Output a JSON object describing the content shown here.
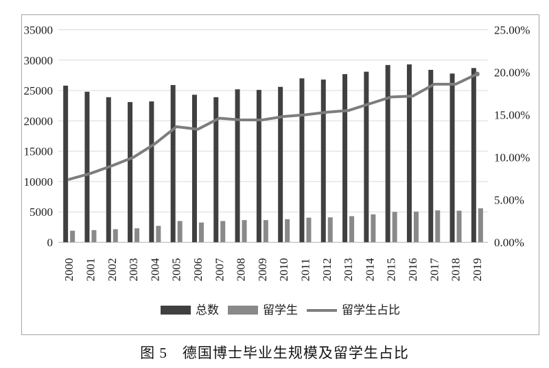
{
  "figure": {
    "caption": "图 5　德国博士毕业生规模及留学生占比"
  },
  "chart_data": {
    "type": "combo-bar-line",
    "title": "",
    "categories": [
      "2000",
      "2001",
      "2002",
      "2003",
      "2004",
      "2005",
      "2006",
      "2007",
      "2008",
      "2009",
      "2010",
      "2011",
      "2012",
      "2013",
      "2014",
      "2015",
      "2016",
      "2017",
      "2018",
      "2019"
    ],
    "series": [
      {
        "name": "总数",
        "type": "bar",
        "axis": "left",
        "color": "#404040",
        "values": [
          25800,
          24800,
          23900,
          23100,
          23200,
          25900,
          24300,
          23900,
          25200,
          25100,
          25600,
          27000,
          26800,
          27700,
          28100,
          29200,
          29300,
          28400,
          27800,
          28700
        ]
      },
      {
        "name": "留学生",
        "type": "bar",
        "axis": "left",
        "color": "#898989",
        "values": [
          1900,
          2000,
          2150,
          2300,
          2700,
          3500,
          3250,
          3500,
          3650,
          3650,
          3800,
          4050,
          4100,
          4300,
          4600,
          5000,
          5050,
          5250,
          5200,
          5600
        ]
      },
      {
        "name": "留学生占比",
        "type": "line",
        "axis": "right",
        "color": "#7d7d7d",
        "unit": "%",
        "values": [
          7.4,
          8.1,
          9.0,
          10.0,
          11.6,
          13.6,
          13.3,
          14.6,
          14.4,
          14.4,
          14.8,
          15.0,
          15.3,
          15.5,
          16.3,
          17.1,
          17.2,
          18.6,
          18.6,
          19.8
        ]
      }
    ],
    "left_axis": {
      "min": 0,
      "max": 35000,
      "step": 5000,
      "tick_labels": [
        "35000",
        "30000",
        "25000",
        "20000",
        "15000",
        "10000",
        "5000",
        "0"
      ]
    },
    "right_axis": {
      "min": 0,
      "max": 25,
      "step": 5,
      "tick_labels": [
        "25.00%",
        "20.00%",
        "15.00%",
        "10.00%",
        "5.00%",
        "0.00%"
      ]
    },
    "grid": true,
    "legend_position": "bottom",
    "colors": {
      "gridline": "#d9d9d9",
      "axis_line": "#b3b3b3",
      "text": "#1c1c1c"
    }
  }
}
